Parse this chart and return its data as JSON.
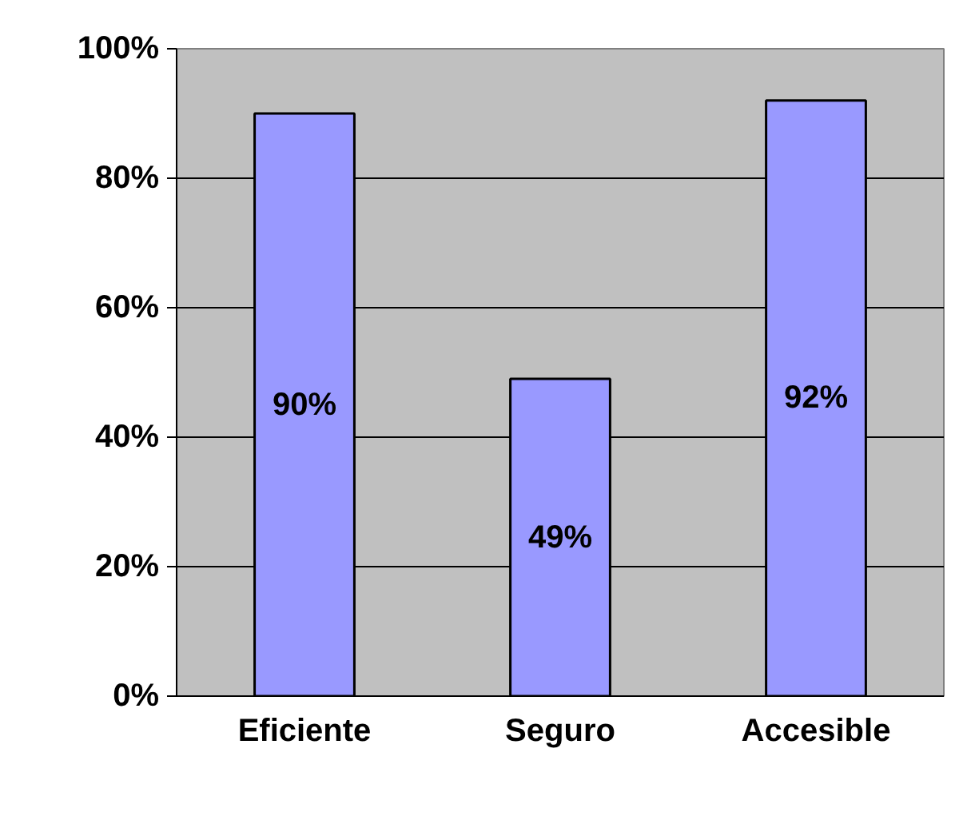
{
  "chart_data": {
    "type": "bar",
    "categories": [
      "Eficiente",
      "Seguro",
      "Accesible"
    ],
    "values": [
      90,
      49,
      92
    ],
    "value_labels": [
      "90%",
      "49%",
      "92%"
    ],
    "color": "#9999ff",
    "ylim": [
      0,
      100
    ],
    "yticks": [
      {
        "value": 0,
        "label": "0%"
      },
      {
        "value": 20,
        "label": "20%"
      },
      {
        "value": 40,
        "label": "40%"
      },
      {
        "value": 60,
        "label": "60%"
      },
      {
        "value": 80,
        "label": "80%"
      },
      {
        "value": 100,
        "label": "100%"
      }
    ],
    "grid": "y"
  }
}
